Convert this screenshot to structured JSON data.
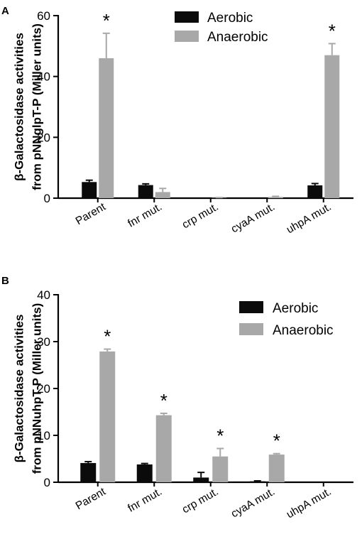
{
  "colors": {
    "aerobic": "#0b0b0b",
    "anaerobic": "#a8a8a8",
    "axis": "#000000"
  },
  "chart_data": [
    {
      "type": "bar",
      "panel_label": "A",
      "ylabel_lines": [
        "β-Galactosidase activities",
        "from pNNglpT-P (Miller units)"
      ],
      "categories": [
        "Parent",
        "fnr mut.",
        "crp mut.",
        "cyaA mut.",
        "uhpA mut."
      ],
      "ylim": [
        0,
        60
      ],
      "yticks": [
        0,
        20,
        40,
        60
      ],
      "legend": [
        "Aerobic",
        "Anaerobic"
      ],
      "legend_position": "top-right",
      "series": [
        {
          "name": "Aerobic",
          "values": [
            5.3,
            4.3,
            0,
            0,
            4.2
          ],
          "errors": [
            0.6,
            0.4,
            0,
            0,
            0.6
          ]
        },
        {
          "name": "Anaerobic",
          "values": [
            46,
            2,
            0.1,
            0.4,
            47
          ],
          "errors": [
            8.2,
            1.2,
            0.1,
            0.2,
            3.8
          ]
        }
      ],
      "annotations": [
        {
          "category": "Parent",
          "series": "Anaerobic",
          "text": "*"
        },
        {
          "category": "uhpA mut.",
          "series": "Anaerobic",
          "text": "*"
        }
      ]
    },
    {
      "type": "bar",
      "panel_label": "B",
      "ylabel_lines": [
        "β-Galactosidase activities",
        "from pNNuhpT-P (Miller units)"
      ],
      "categories": [
        "Parent",
        "fnr mut.",
        "crp mut.",
        "cyaA mut.",
        "uhpA mut."
      ],
      "ylim": [
        0,
        40
      ],
      "yticks": [
        0,
        10,
        20,
        30,
        40
      ],
      "legend": [
        "Aerobic",
        "Anaerobic"
      ],
      "legend_position": "top-right",
      "series": [
        {
          "name": "Aerobic",
          "values": [
            4.1,
            3.8,
            1.0,
            0.2,
            0
          ],
          "errors": [
            0.3,
            0.2,
            1.1,
            0.1,
            0
          ]
        },
        {
          "name": "Anaerobic",
          "values": [
            27.9,
            14.3,
            5.5,
            5.9,
            0
          ],
          "errors": [
            0.5,
            0.4,
            1.7,
            0.2,
            0
          ]
        }
      ],
      "annotations": [
        {
          "category": "Parent",
          "series": "Anaerobic",
          "text": "*"
        },
        {
          "category": "fnr mut.",
          "series": "Anaerobic",
          "text": "*"
        },
        {
          "category": "crp mut.",
          "series": "Anaerobic",
          "text": "*"
        },
        {
          "category": "cyaA mut.",
          "series": "Anaerobic",
          "text": "*"
        }
      ]
    }
  ]
}
